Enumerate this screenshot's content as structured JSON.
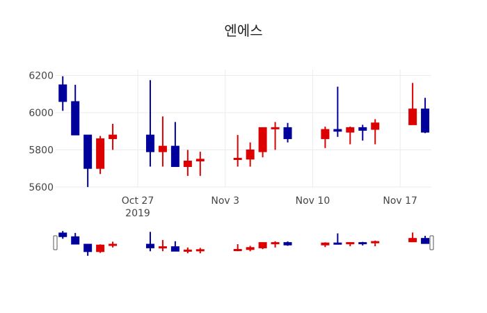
{
  "chart_data": {
    "type": "candlestick",
    "title": "엔에스",
    "xlabel": "",
    "ylabel": "",
    "ylim": [
      5596,
      6232
    ],
    "yticks": [
      5600,
      5800,
      6000,
      6200
    ],
    "xticks": [
      {
        "label": "Oct 27",
        "sublabel": "2019",
        "date": "2019-10-27"
      },
      {
        "label": "Nov 3",
        "date": "2019-11-03"
      },
      {
        "label": "Nov 10",
        "date": "2019-11-10"
      },
      {
        "label": "Nov 17",
        "date": "2019-11-17"
      }
    ],
    "grid": true,
    "legend": false,
    "rangeslider": true,
    "colors": {
      "increasing": "#DD0000",
      "decreasing": "#00009A"
    },
    "x": [
      "2019-10-21",
      "2019-10-22",
      "2019-10-23",
      "2019-10-24",
      "2019-10-25",
      "2019-10-28",
      "2019-10-29",
      "2019-10-30",
      "2019-10-31",
      "2019-11-01",
      "2019-11-04",
      "2019-11-05",
      "2019-11-06",
      "2019-11-07",
      "2019-11-08",
      "2019-11-11",
      "2019-11-12",
      "2019-11-13",
      "2019-11-14",
      "2019-11-15",
      "2019-11-18",
      "2019-11-19"
    ],
    "open": [
      6150,
      6060,
      5880,
      5700,
      5860,
      5880,
      5790,
      5820,
      5710,
      5740,
      5750,
      5750,
      5790,
      5915,
      5920,
      5860,
      5910,
      5895,
      5920,
      5910,
      5935,
      6020
    ],
    "high": [
      6196,
      6150,
      5880,
      5875,
      5940,
      6175,
      5980,
      5950,
      5800,
      5790,
      5880,
      5840,
      5920,
      5950,
      5945,
      5925,
      6140,
      5925,
      5935,
      5965,
      6160,
      6080
    ],
    "low": [
      6010,
      5880,
      5600,
      5670,
      5800,
      5710,
      5710,
      5710,
      5660,
      5660,
      5710,
      5710,
      5760,
      5800,
      5840,
      5810,
      5870,
      5830,
      5850,
      5830,
      5935,
      5890
    ],
    "close": [
      6060,
      5880,
      5700,
      5860,
      5880,
      5790,
      5820,
      5710,
      5740,
      5750,
      5755,
      5800,
      5920,
      5920,
      5860,
      5910,
      5900,
      5920,
      5905,
      5945,
      6020,
      5895
    ]
  }
}
